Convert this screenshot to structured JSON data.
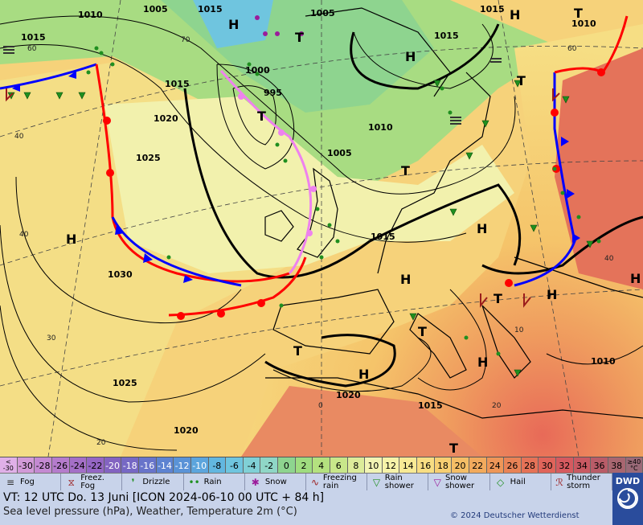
{
  "map": {
    "isobar_labels": [
      "1010",
      "1005",
      "1015",
      "1005",
      "1015",
      "1010",
      "1015",
      "1015",
      "1000",
      "995",
      "1020",
      "1010",
      "1005",
      "1025",
      "1015",
      "1030",
      "1015",
      "1010",
      "1020",
      "1015",
      "1025",
      "1020"
    ],
    "pressure_centers": [
      "H",
      "H",
      "H",
      "H",
      "H",
      "H",
      "H",
      "H",
      "H",
      "H",
      "T",
      "T",
      "T",
      "T",
      "T",
      "T",
      "T",
      "T",
      "T"
    ],
    "grid_labels": [
      "60",
      "70",
      "40",
      "40",
      "30",
      "20",
      "0",
      "20",
      "10",
      "40",
      "60"
    ]
  },
  "colorbar": {
    "low_label_top": "<",
    "low_label_bottom": "-30",
    "values": [
      "-30",
      "-28",
      "-26",
      "-24",
      "-22",
      "-20",
      "-18",
      "-16",
      "-14",
      "-12",
      "-10",
      "-8",
      "-6",
      "-4",
      "-2",
      "0",
      "2",
      "4",
      "6",
      "8",
      "10",
      "12",
      "14",
      "16",
      "18",
      "20",
      "22",
      "24",
      "26",
      "28",
      "30",
      "32",
      "34",
      "36",
      "38"
    ],
    "colors": [
      "#d29ad8",
      "#c48ad2",
      "#b57ccc",
      "#a46fc7",
      "#9466c4",
      "#8363c1",
      "#7668c4",
      "#6874ca",
      "#5d83d1",
      "#5a93d7",
      "#5ca5dd",
      "#62b7e0",
      "#6fc5df",
      "#80d0d6",
      "#8fd6c6",
      "#8ed48f",
      "#9fdc7f",
      "#b4e17f",
      "#c8e78a",
      "#dcec9a",
      "#f2f4b4",
      "#f7f3a9",
      "#f8ea95",
      "#f8de83",
      "#f7cf72",
      "#f5be66",
      "#f2aa5d",
      "#ee9658",
      "#e98356",
      "#e57257",
      "#e0645a",
      "#d55a5f",
      "#c95962",
      "#b95c68",
      "#a86670"
    ],
    "high_label_top": "≥40",
    "high_label_bottom": "°C"
  },
  "legend": [
    {
      "icon": "fog-icon",
      "glyph": "≡",
      "label": "Fog"
    },
    {
      "icon": "freezing-fog-icon",
      "glyph": "⧖",
      "label": "Freez. Fog"
    },
    {
      "icon": "drizzle-icon",
      "glyph": "❜",
      "label": "Drizzle"
    },
    {
      "icon": "rain-icon",
      "glyph": "••",
      "label": "Rain"
    },
    {
      "icon": "snow-icon",
      "glyph": "✱",
      "label": "Snow"
    },
    {
      "icon": "freezing-rain-icon",
      "glyph": "∿",
      "label": "Freezing rain"
    },
    {
      "icon": "rain-shower-icon",
      "glyph": "▽",
      "label": "Rain shower"
    },
    {
      "icon": "snow-shower-icon",
      "glyph": "▽",
      "label": "Snow shower"
    },
    {
      "icon": "hail-icon",
      "glyph": "◇",
      "label": "Hail"
    },
    {
      "icon": "thunderstorm-icon",
      "glyph": "ℛ",
      "label": "Thunder storm"
    }
  ],
  "info": {
    "valid_time": "VT: 12 UTC Do.   13 Juni [ICON 2024-06-10   00 UTC + 84 h]",
    "description": "Sea level pressure (hPa), Weather, Temperature 2m (°C)",
    "copyright": "© 2024 Deutscher Wetterdienst",
    "logo": "DWD"
  },
  "colors": {
    "warm_front": "#ff0000",
    "cold_front": "#0000ff",
    "occluded_front": "#ee82ee",
    "isobar": "#000000"
  }
}
